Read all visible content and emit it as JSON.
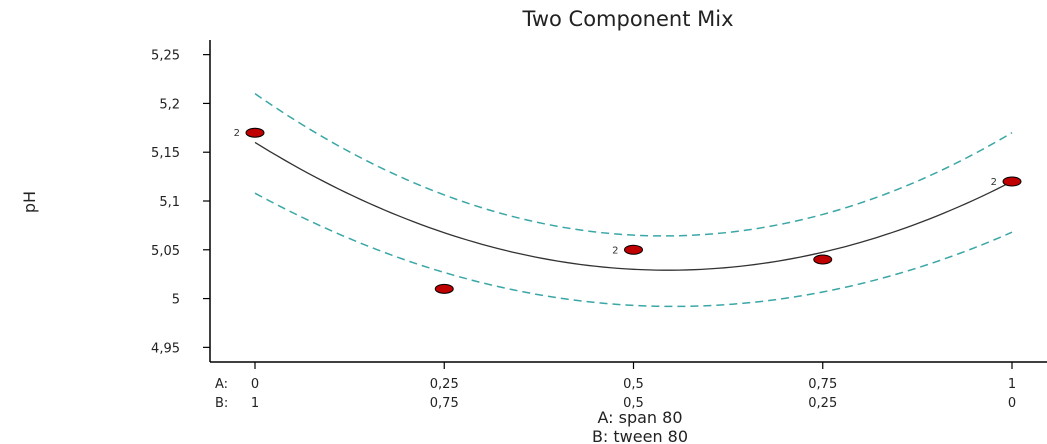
{
  "chart_data": {
    "type": "scatter",
    "title": "Two Component Mix",
    "ylabel": "pH",
    "xlabel_lines": [
      "A: span 80",
      "B: tween 80"
    ],
    "x_row_labels": [
      "A:",
      "B:"
    ],
    "x_ticks": [
      {
        "a": "0",
        "b": "1",
        "value": 0
      },
      {
        "a": "0,25",
        "b": "0,75",
        "value": 0.25
      },
      {
        "a": "0,5",
        "b": "0,5",
        "value": 0.5
      },
      {
        "a": "0,75",
        "b": "0,25",
        "value": 0.75
      },
      {
        "a": "1",
        "b": "0",
        "value": 1
      }
    ],
    "y_ticks": [
      {
        "label": "4,95",
        "value": 4.95
      },
      {
        "label": "5",
        "value": 5.0
      },
      {
        "label": "5,05",
        "value": 5.05
      },
      {
        "label": "5,1",
        "value": 5.1
      },
      {
        "label": "5,15",
        "value": 5.15
      },
      {
        "label": "5,2",
        "value": 5.2
      },
      {
        "label": "5,25",
        "value": 5.25
      }
    ],
    "xlim": [
      0,
      1
    ],
    "ylim": [
      4.935,
      5.265
    ],
    "points": [
      {
        "x": 0,
        "y": 5.17,
        "label": "2"
      },
      {
        "x": 0.25,
        "y": 5.01,
        "label": ""
      },
      {
        "x": 0.5,
        "y": 5.05,
        "label": "2"
      },
      {
        "x": 0.75,
        "y": 5.04,
        "label": ""
      },
      {
        "x": 1,
        "y": 5.12,
        "label": "2"
      }
    ],
    "fit": {
      "quad_coeffs": [
        5.16,
        -0.48,
        0.44
      ]
    },
    "ci_upper": {
      "quad_coeffs": [
        5.21,
        -0.54,
        0.5
      ]
    },
    "ci_lower": {
      "quad_coeffs": [
        5.108,
        -0.42,
        0.38
      ]
    },
    "colors": {
      "point_fill": "#c00000",
      "point_edge": "#000000",
      "fit_line": "#333333",
      "ci_line": "#3aa6a6",
      "axis": "#000000"
    }
  }
}
